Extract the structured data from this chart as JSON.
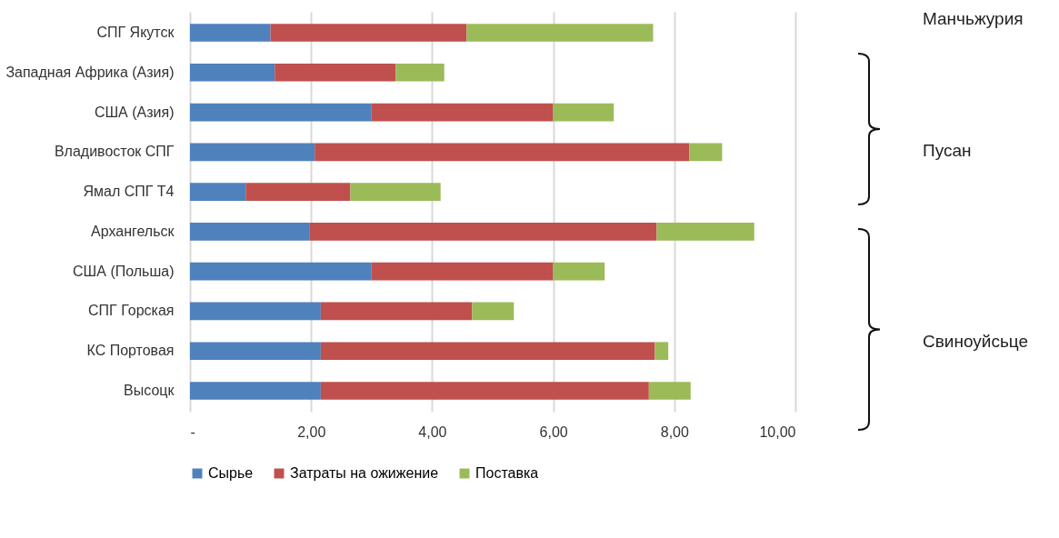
{
  "chart_data": {
    "type": "bar",
    "orientation": "horizontal",
    "stacked": true,
    "categories": [
      "СПГ Якутск",
      "Западная Африка (Азия)",
      "США (Азия)",
      "Владивосток СПГ",
      "Ямал СПГ Т4",
      "Архангельск",
      "США (Польша)",
      "СПГ Горская",
      "КС Портовая",
      "Высоцк"
    ],
    "series": [
      {
        "name": "Сырье",
        "color": "#4f81bd",
        "values": [
          1.33,
          1.4,
          3.0,
          2.06,
          0.92,
          1.98,
          3.0,
          2.16,
          2.16,
          2.16
        ]
      },
      {
        "name": "Затраты на ожижение",
        "color": "#c0504d",
        "values": [
          3.24,
          2.0,
          3.0,
          6.19,
          1.73,
          5.73,
          3.0,
          2.5,
          5.52,
          5.42
        ]
      },
      {
        "name": "Поставка",
        "color": "#9bbb59",
        "values": [
          3.08,
          0.8,
          1.0,
          0.54,
          1.49,
          1.61,
          0.85,
          0.69,
          0.22,
          0.69
        ]
      }
    ],
    "xlim": [
      0,
      10
    ],
    "xticks": [
      {
        "value": 0,
        "label": "-"
      },
      {
        "value": 2,
        "label": "2,00"
      },
      {
        "value": 4,
        "label": "4,00"
      },
      {
        "value": 6,
        "label": "6,00"
      },
      {
        "value": 8,
        "label": "8,00"
      },
      {
        "value": 10,
        "label": "10,00"
      }
    ],
    "grid": "x",
    "legend": "bottom",
    "annotations": [
      "Манчьжурия",
      "Пусан",
      "Свиноуйсьце"
    ]
  }
}
